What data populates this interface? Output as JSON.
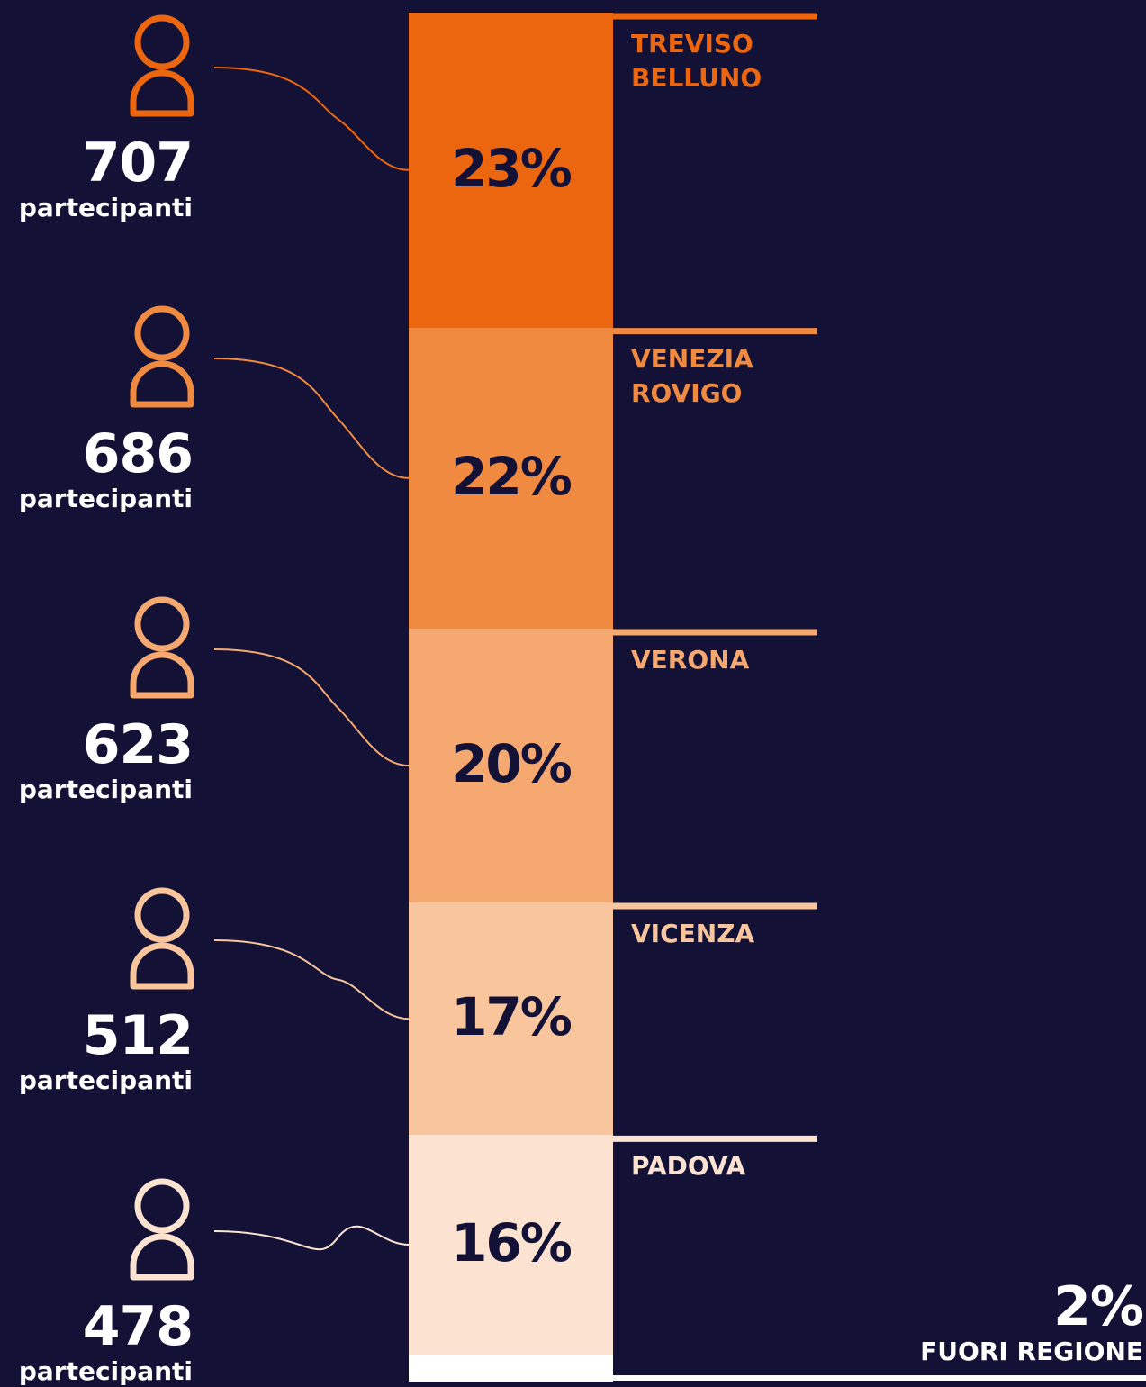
{
  "chart_data": {
    "type": "stacked-column",
    "series": [
      {
        "name": "TREVISO BELLUNO",
        "color": "#ec6610",
        "values": [
          23
        ],
        "value_labels": [
          "23%"
        ],
        "participants": 707,
        "participants_label": "partecipanti"
      },
      {
        "name": "VENEZIA ROVIGO",
        "color": "#f08a40",
        "values": [
          22
        ],
        "value_labels": [
          "22%"
        ],
        "participants": 686,
        "participants_label": "partecipanti"
      },
      {
        "name": "VERONA",
        "color": "#f5a870",
        "values": [
          20
        ],
        "value_labels": [
          "20%"
        ],
        "participants": 623,
        "participants_label": "partecipanti"
      },
      {
        "name": "VICENZA",
        "color": "#f9c59d",
        "values": [
          17
        ],
        "value_labels": [
          "17%"
        ],
        "participants": 512,
        "participants_label": "partecipanti"
      },
      {
        "name": "PADOVA",
        "color": "#fce3d1",
        "values": [
          16
        ],
        "value_labels": [
          "16%"
        ],
        "participants": 478,
        "participants_label": "partecipanti"
      },
      {
        "name": "FUORI REGIONE",
        "color": "#ffffff",
        "values": [
          2
        ],
        "value_labels": [
          "2%"
        ]
      }
    ]
  }
}
